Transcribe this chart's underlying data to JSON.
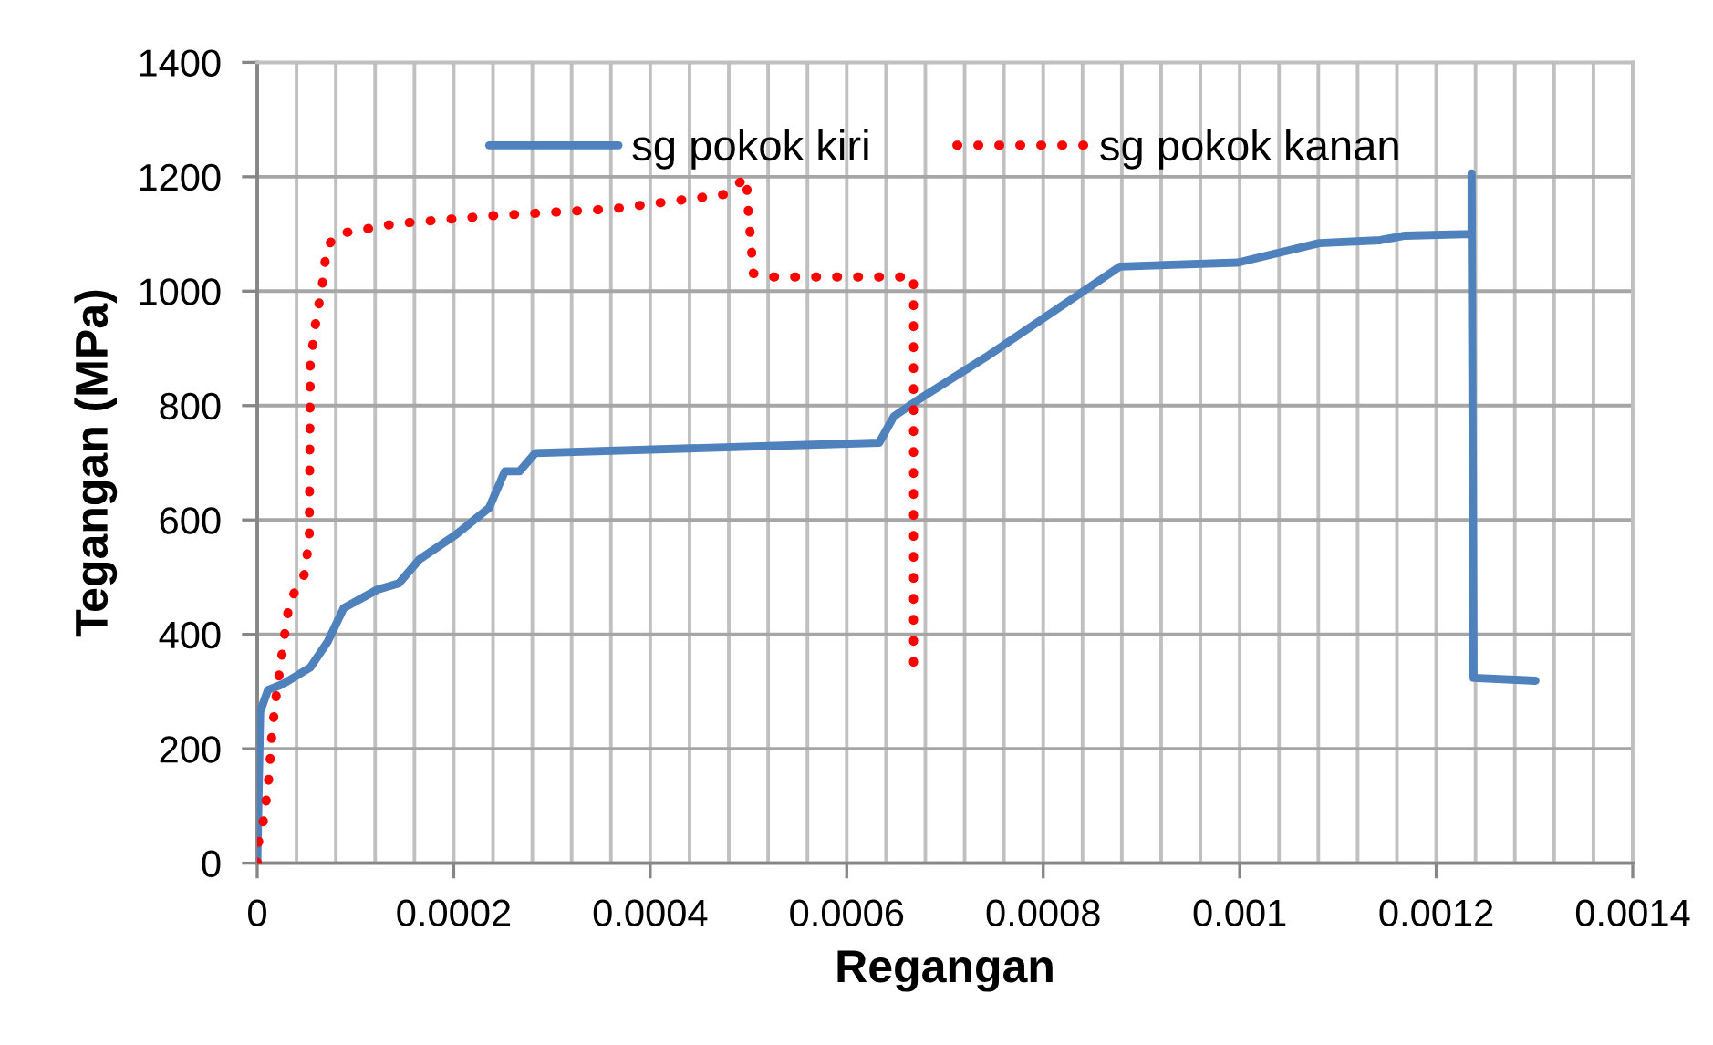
{
  "chart_data": {
    "type": "line",
    "xlabel": "Regangan",
    "ylabel": "Tegangan (MPa)",
    "xlim": [
      0,
      0.0014
    ],
    "ylim": [
      0,
      1400
    ],
    "xticks": [
      0,
      {
        "value": 4e-05,
        "label": null
      },
      {
        "value": 8e-05,
        "label": null
      },
      {
        "value": 0.00012,
        "label": null
      },
      {
        "value": 0.00016,
        "label": null
      },
      0.0002,
      {
        "value": 0.00024,
        "label": null
      },
      {
        "value": 0.00028,
        "label": null
      },
      {
        "value": 0.00032,
        "label": null
      },
      {
        "value": 0.00036,
        "label": null
      },
      0.0004,
      {
        "value": 0.00044,
        "label": null
      },
      {
        "value": 0.00048,
        "label": null
      },
      {
        "value": 0.00052,
        "label": null
      },
      {
        "value": 0.00056,
        "label": null
      },
      0.0006,
      {
        "value": 0.00064,
        "label": null
      },
      {
        "value": 0.00068,
        "label": null
      },
      {
        "value": 0.00072,
        "label": null
      },
      {
        "value": 0.00076,
        "label": null
      },
      0.0008,
      {
        "value": 0.00084,
        "label": null
      },
      {
        "value": 0.00088,
        "label": null
      },
      {
        "value": 0.00092,
        "label": null
      },
      {
        "value": 0.00096,
        "label": null
      },
      0.001,
      {
        "value": 0.00104,
        "label": null
      },
      {
        "value": 0.00108,
        "label": null
      },
      {
        "value": 0.00112,
        "label": null
      },
      {
        "value": 0.00116,
        "label": null
      },
      0.0012,
      {
        "value": 0.00124,
        "label": null
      },
      {
        "value": 0.00128,
        "label": null
      },
      {
        "value": 0.00132,
        "label": null
      },
      {
        "value": 0.00136,
        "label": null
      },
      0.0014
    ],
    "yticks": [
      0,
      200,
      400,
      600,
      800,
      1000,
      1200,
      1400
    ],
    "grid": true,
    "legend": "top",
    "marker": "none",
    "series": [
      {
        "name": "sg pokok kiri",
        "color": "#4f81bd",
        "line_style": "solid",
        "x": [
          0,
          3e-06,
          1.1e-05,
          2.6e-05,
          5.4e-05,
          7.2e-05,
          8.8e-05,
          0.000122,
          0.000144,
          0.000165,
          0.000202,
          0.000236,
          0.000252,
          0.000267,
          0.000283,
          0.000633,
          0.000648,
          0.00067,
          0.000741,
          0.000878,
          0.000998,
          0.001081,
          0.001143,
          0.001168,
          0.001236,
          0.001236,
          0.001238,
          0.001301
        ],
        "values": [
          0,
          265,
          303,
          313,
          342,
          388,
          446,
          478,
          489,
          531,
          574,
          621,
          685,
          685,
          717,
          735,
          781,
          807,
          884,
          1043,
          1050,
          1084,
          1089,
          1097,
          1100,
          1206,
          324,
          319
        ]
      },
      {
        "name": "sg pokok kanan",
        "color": "#ff0000",
        "line_style": "dotted",
        "x": [
          0,
          1e-06,
          7e-06,
          1.2e-05,
          1.5e-05,
          2e-05,
          2.3e-05,
          3e-05,
          3.3e-05,
          4e-05,
          4.8e-05,
          5.3e-05,
          5.4e-05,
          5.9e-05,
          6.6e-05,
          7.1e-05,
          8.2e-05,
          0.000141,
          0.00024,
          0.000363,
          0.000475,
          0.000498,
          0.000499,
          0.000505,
          0.000521,
          0.000668,
          0.000668
        ],
        "values": [
          0,
          34,
          80,
          152,
          228,
          303,
          338,
          425,
          457,
          480,
          505,
          568,
          871,
          940,
          1009,
          1078,
          1100,
          1118,
          1132,
          1144,
          1169,
          1199,
          1158,
          1031,
          1025,
          1025,
          338
        ]
      }
    ]
  }
}
